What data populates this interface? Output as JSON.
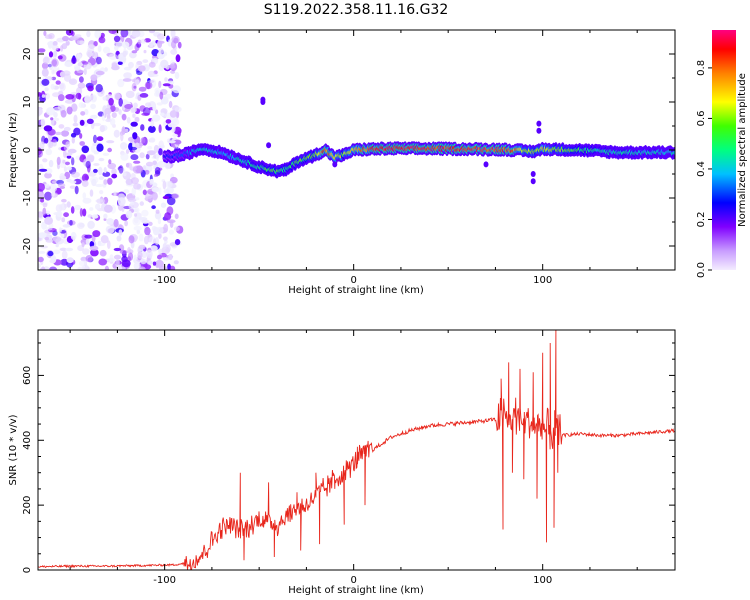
{
  "figure_title": "S119.2022.358.11.16.G32",
  "colorbar": {
    "label": "Normalized spectral amplitude",
    "ticks": [
      "0.0",
      "0.2",
      "0.4",
      "0.6",
      "0.8"
    ],
    "tick_values": [
      0.0,
      0.2,
      0.4,
      0.6,
      0.8
    ],
    "range": [
      0,
      0.95
    ],
    "colormap": [
      "#f0f0ff",
      "#d8b8ff",
      "#8000ff",
      "#0000ff",
      "#00c0ff",
      "#00ff80",
      "#80ff00",
      "#ffff00",
      "#ff8000",
      "#ff0000",
      "#ff0080"
    ]
  },
  "chart_data": [
    {
      "type": "heatmap",
      "xlabel": "Height of straight line (km)",
      "ylabel": "Frequency (Hz)",
      "xlim": [
        -167,
        170
      ],
      "ylim": [
        -25,
        25
      ],
      "xticks": [
        "-100",
        "0",
        "100"
      ],
      "xtick_values": [
        -100,
        0,
        100
      ],
      "yticks": [
        "-20",
        "-10",
        "0",
        "10",
        "20"
      ],
      "ytick_values": [
        -20,
        -10,
        0,
        10,
        20
      ],
      "noise_region": {
        "x_range": [
          -167,
          -92
        ],
        "freq_range": [
          -25,
          25
        ]
      },
      "signal_track": {
        "x": [
          -100,
          -90,
          -80,
          -70,
          -60,
          -50,
          -40,
          -35,
          -30,
          -20,
          -15,
          -10,
          -5,
          0,
          10,
          20,
          40,
          60,
          80,
          95,
          100,
          120,
          140,
          170
        ],
        "freq": [
          -1.5,
          -1.0,
          0.3,
          -0.5,
          -2.0,
          -3.5,
          -4.5,
          -4.0,
          -2.5,
          -1.0,
          0.0,
          -1.5,
          -1.0,
          0.0,
          0.2,
          0.3,
          0.3,
          0.2,
          0.1,
          -0.3,
          0.2,
          0.0,
          -0.5,
          -0.5
        ],
        "amplitude": [
          0.3,
          0.35,
          0.45,
          0.4,
          0.45,
          0.5,
          0.55,
          0.5,
          0.55,
          0.6,
          0.9,
          0.7,
          0.6,
          0.7,
          0.9,
          0.92,
          0.9,
          0.9,
          0.88,
          0.6,
          0.7,
          0.5,
          0.45,
          0.45
        ]
      }
    },
    {
      "type": "line",
      "xlabel": "Height of straight line (km)",
      "ylabel": "SNR (10 * v/v)",
      "xlim": [
        -167,
        170
      ],
      "ylim": [
        0,
        740
      ],
      "xticks": [
        "-100",
        "0",
        "100"
      ],
      "xtick_values": [
        -100,
        0,
        100
      ],
      "yticks": [
        "0",
        "200",
        "400",
        "600"
      ],
      "ytick_values": [
        0,
        200,
        400,
        600
      ],
      "color": "#e8261c",
      "series": [
        {
          "x": [
            -167,
            -150,
            -130,
            -110,
            -95,
            -85,
            -80,
            -75,
            -70,
            -65,
            -60,
            -55,
            -50,
            -45,
            -40,
            -35,
            -30,
            -25,
            -20,
            -15,
            -10,
            -5,
            0,
            5,
            10,
            15,
            20,
            25,
            30,
            40,
            50,
            60,
            70,
            75,
            80,
            82,
            85,
            88,
            90,
            95,
            100,
            103,
            105,
            107,
            110,
            120,
            130,
            140,
            150,
            160,
            170
          ],
          "y": [
            10,
            12,
            12,
            14,
            16,
            25,
            50,
            90,
            130,
            140,
            120,
            130,
            160,
            150,
            140,
            170,
            190,
            200,
            230,
            250,
            280,
            300,
            330,
            360,
            370,
            390,
            410,
            420,
            430,
            445,
            450,
            455,
            460,
            465,
            470,
            460,
            480,
            470,
            460,
            450,
            440,
            430,
            420,
            430,
            415,
            420,
            415,
            415,
            420,
            425,
            430
          ]
        }
      ],
      "spikes": [
        {
          "x": -60,
          "y": 300
        },
        {
          "x": -58,
          "y": 30
        },
        {
          "x": -45,
          "y": 270
        },
        {
          "x": -42,
          "y": 40
        },
        {
          "x": -30,
          "y": 240
        },
        {
          "x": -28,
          "y": 60
        },
        {
          "x": -20,
          "y": 300
        },
        {
          "x": -18,
          "y": 80
        },
        {
          "x": -10,
          "y": 250
        },
        {
          "x": -5,
          "y": 140
        },
        {
          "x": 2,
          "y": 380
        },
        {
          "x": 6,
          "y": 200
        },
        {
          "x": 78,
          "y": 590
        },
        {
          "x": 79,
          "y": 125
        },
        {
          "x": 82,
          "y": 640
        },
        {
          "x": 84,
          "y": 300
        },
        {
          "x": 88,
          "y": 620
        },
        {
          "x": 90,
          "y": 280
        },
        {
          "x": 95,
          "y": 610
        },
        {
          "x": 97,
          "y": 220
        },
        {
          "x": 100,
          "y": 670
        },
        {
          "x": 102,
          "y": 85
        },
        {
          "x": 104,
          "y": 700
        },
        {
          "x": 106,
          "y": 130
        },
        {
          "x": 107,
          "y": 740
        },
        {
          "x": 108,
          "y": 300
        }
      ]
    }
  ]
}
